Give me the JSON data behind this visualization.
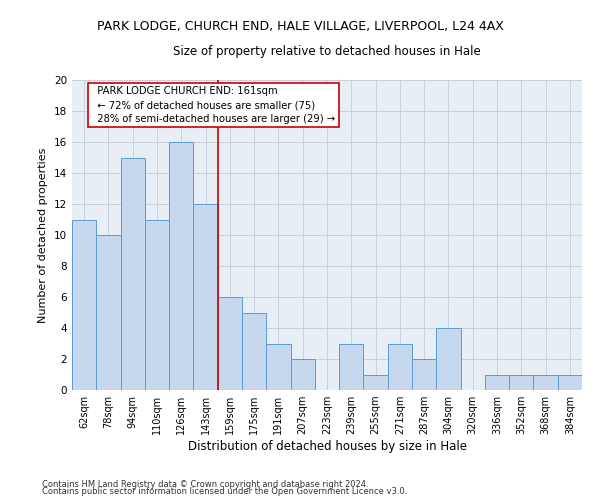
{
  "title_line1": "PARK LODGE, CHURCH END, HALE VILLAGE, LIVERPOOL, L24 4AX",
  "title_line2": "Size of property relative to detached houses in Hale",
  "xlabel": "Distribution of detached houses by size in Hale",
  "ylabel": "Number of detached properties",
  "categories": [
    "62sqm",
    "78sqm",
    "94sqm",
    "110sqm",
    "126sqm",
    "143sqm",
    "159sqm",
    "175sqm",
    "191sqm",
    "207sqm",
    "223sqm",
    "239sqm",
    "255sqm",
    "271sqm",
    "287sqm",
    "304sqm",
    "320sqm",
    "336sqm",
    "352sqm",
    "368sqm",
    "384sqm"
  ],
  "values": [
    11,
    10,
    15,
    11,
    16,
    12,
    6,
    5,
    3,
    2,
    0,
    3,
    1,
    3,
    2,
    4,
    0,
    1,
    1,
    1,
    1
  ],
  "bar_color": "#c5d8ed",
  "bar_edge_color": "#5b9bd5",
  "reference_line_x": 5.5,
  "annotation_box_text": "  PARK LODGE CHURCH END: 161sqm\n  ← 72% of detached houses are smaller (75)\n  28% of semi-detached houses are larger (29) →",
  "ylim": [
    0,
    20
  ],
  "yticks": [
    0,
    2,
    4,
    6,
    8,
    10,
    12,
    14,
    16,
    18,
    20
  ],
  "footer_line1": "Contains HM Land Registry data © Crown copyright and database right 2024.",
  "footer_line2": "Contains public sector information licensed under the Open Government Licence v3.0.",
  "background_color": "#ffffff",
  "axes_bg_color": "#e8eef5",
  "grid_color": "#c8d0dc",
  "ref_line_color": "#cc0000",
  "annotation_border_color": "#cc0000",
  "annotation_facecolor": "#ffffff",
  "title_fontsize": 9,
  "subtitle_fontsize": 8.5,
  "xlabel_fontsize": 8.5,
  "ylabel_fontsize": 8,
  "tick_fontsize": 7,
  "annot_fontsize": 7.2,
  "footer_fontsize": 6
}
